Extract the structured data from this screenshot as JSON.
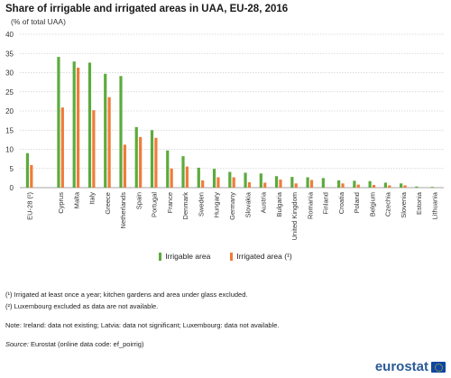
{
  "header": {
    "title": "Share of irrigable and irrigated areas in UAA, EU-28, 2016",
    "subtitle": "(% of total UAA)"
  },
  "legend": {
    "irrigable": "Irrigable area",
    "irrigated": "Irrigated area (¹)"
  },
  "notes": [
    "(¹) Irrigated at least once a year; kitchen gardens and area under glass excluded.",
    "(²) Luxembourg excluded as data are not available.",
    "Note: Ireland: data not existing; Latvia: data not significant; Luxembourg: data not available."
  ],
  "source": {
    "label": "Source:",
    "text": "Eurostat (online data code: ef_poirrig)"
  },
  "logo": {
    "text": "eurostat"
  },
  "colors": {
    "irrigable": "#5cab3c",
    "irrigated": "#ef7c3a",
    "grid": "#cfcfcf"
  },
  "chart_data": {
    "type": "bar",
    "categories": [
      "EU-28 (²)",
      "Cyprus",
      "Malta",
      "Italy",
      "Greece",
      "Netherlands",
      "Spain",
      "Portugal",
      "France",
      "Denmark",
      "Sweden",
      "Hungary",
      "Germany",
      "Slovakia",
      "Austria",
      "Bulgaria",
      "United Kingdom",
      "Romania",
      "Finland",
      "Croatia",
      "Poland",
      "Belgium",
      "Czechia",
      "Slovenia",
      "Estonia",
      "Lithuania"
    ],
    "gap_after_index": 0,
    "series": [
      {
        "name": "Irrigable area",
        "values": [
          9.0,
          34.1,
          32.9,
          32.6,
          29.7,
          29.1,
          15.8,
          15.0,
          9.7,
          8.2,
          5.2,
          4.9,
          4.1,
          3.9,
          3.7,
          3.0,
          2.8,
          2.7,
          2.5,
          1.9,
          1.8,
          1.7,
          1.3,
          1.1,
          0.3,
          0.2
        ]
      },
      {
        "name": "Irrigated area (¹)",
        "values": [
          5.9,
          20.9,
          31.3,
          20.2,
          23.6,
          11.2,
          13.2,
          13.0,
          5.0,
          5.5,
          1.9,
          2.7,
          2.7,
          1.4,
          1.3,
          2.1,
          1.1,
          2.0,
          0.1,
          1.1,
          0.8,
          0.7,
          0.6,
          0.6,
          0.0,
          0.0
        ]
      }
    ],
    "ylim": [
      0,
      40
    ],
    "yticks": [
      0,
      5,
      10,
      15,
      20,
      25,
      30,
      35,
      40
    ],
    "grid": true,
    "legend_position": "bottom"
  }
}
